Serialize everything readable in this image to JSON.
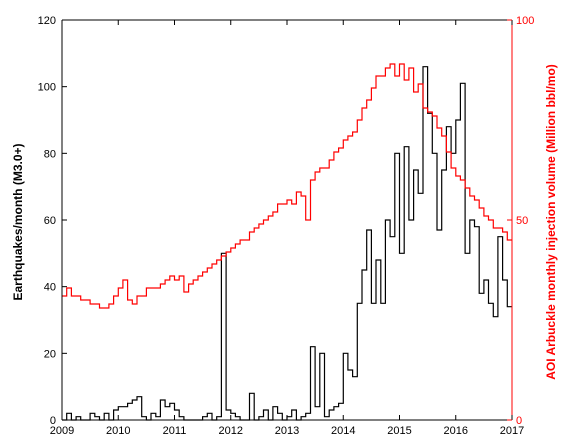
{
  "chart_data": {
    "type": "line",
    "xlabel": "",
    "ylabel": "Earthquakes/month (M3.0+)",
    "y2label": "AOI Arbuckle monthly injection volume (Million bbl/mo)",
    "xlim": [
      2009,
      2017
    ],
    "ylim": [
      0,
      120
    ],
    "y2lim": [
      0,
      100
    ],
    "x_ticks": [
      "2009",
      "2010",
      "2011",
      "2012",
      "2013",
      "2014",
      "2015",
      "2016",
      "2017"
    ],
    "y_ticks": [
      "0",
      "20",
      "40",
      "60",
      "80",
      "100",
      "120"
    ],
    "y2_ticks": [
      "0",
      "50",
      "100"
    ],
    "colors": {
      "earthquakes": "#000000",
      "injection": "#ff0000",
      "axis_right": "#ff0000",
      "axis_left": "#000000"
    },
    "series": [
      {
        "axis": "left",
        "style": "step",
        "x": [
          2009.0,
          2009.083,
          2009.167,
          2009.25,
          2009.333,
          2009.417,
          2009.5,
          2009.583,
          2009.667,
          2009.75,
          2009.833,
          2009.917,
          2010.0,
          2010.083,
          2010.167,
          2010.25,
          2010.333,
          2010.417,
          2010.5,
          2010.583,
          2010.667,
          2010.75,
          2010.833,
          2010.917,
          2011.0,
          2011.083,
          2011.167,
          2011.25,
          2011.333,
          2011.417,
          2011.5,
          2011.583,
          2011.667,
          2011.75,
          2011.833,
          2011.917,
          2012.0,
          2012.083,
          2012.167,
          2012.25,
          2012.333,
          2012.417,
          2012.5,
          2012.583,
          2012.667,
          2012.75,
          2012.833,
          2012.917,
          2013.0,
          2013.083,
          2013.167,
          2013.25,
          2013.333,
          2013.417,
          2013.5,
          2013.583,
          2013.667,
          2013.75,
          2013.833,
          2013.917,
          2014.0,
          2014.083,
          2014.167,
          2014.25,
          2014.333,
          2014.417,
          2014.5,
          2014.583,
          2014.667,
          2014.75,
          2014.833,
          2014.917,
          2015.0,
          2015.083,
          2015.167,
          2015.25,
          2015.333,
          2015.417,
          2015.5,
          2015.583,
          2015.667,
          2015.75,
          2015.833,
          2015.917,
          2016.0,
          2016.083,
          2016.167,
          2016.25,
          2016.333,
          2016.417,
          2016.5,
          2016.583,
          2016.667,
          2016.75,
          2016.833,
          2016.917
        ],
        "values": [
          0,
          2,
          0,
          1,
          0,
          0,
          2,
          1,
          0,
          2,
          0,
          3,
          4,
          4,
          5,
          6,
          7,
          1,
          0,
          2,
          1,
          6,
          4,
          5,
          3,
          1,
          0,
          0,
          0,
          0,
          1,
          2,
          0,
          1,
          50,
          3,
          2,
          1,
          0,
          0,
          8,
          0,
          1,
          3,
          0,
          4,
          2,
          0,
          1,
          3,
          0,
          1,
          2,
          22,
          4,
          20,
          1,
          3,
          4,
          5,
          20,
          15,
          13,
          35,
          45,
          57,
          35,
          48,
          35,
          60,
          55,
          80,
          50,
          82,
          60,
          75,
          68,
          106,
          92,
          80,
          57,
          75,
          88,
          80,
          90,
          101,
          50,
          60,
          58,
          38,
          42,
          35,
          31,
          55,
          42,
          34
        ]
      },
      {
        "axis": "right",
        "style": "step",
        "x": [
          2009.0,
          2009.083,
          2009.167,
          2009.25,
          2009.333,
          2009.417,
          2009.5,
          2009.583,
          2009.667,
          2009.75,
          2009.833,
          2009.917,
          2010.0,
          2010.083,
          2010.167,
          2010.25,
          2010.333,
          2010.417,
          2010.5,
          2010.583,
          2010.667,
          2010.75,
          2010.833,
          2010.917,
          2011.0,
          2011.083,
          2011.167,
          2011.25,
          2011.333,
          2011.417,
          2011.5,
          2011.583,
          2011.667,
          2011.75,
          2011.833,
          2011.917,
          2012.0,
          2012.083,
          2012.167,
          2012.25,
          2012.333,
          2012.417,
          2012.5,
          2012.583,
          2012.667,
          2012.75,
          2012.833,
          2012.917,
          2013.0,
          2013.083,
          2013.167,
          2013.25,
          2013.333,
          2013.417,
          2013.5,
          2013.583,
          2013.667,
          2013.75,
          2013.833,
          2013.917,
          2014.0,
          2014.083,
          2014.167,
          2014.25,
          2014.333,
          2014.417,
          2014.5,
          2014.583,
          2014.667,
          2014.75,
          2014.833,
          2014.917,
          2015.0,
          2015.083,
          2015.167,
          2015.25,
          2015.333,
          2015.417,
          2015.5,
          2015.583,
          2015.667,
          2015.75,
          2015.833,
          2015.917,
          2016.0,
          2016.083,
          2016.167,
          2016.25,
          2016.333,
          2016.417,
          2016.5,
          2016.583,
          2016.667,
          2016.75,
          2016.833,
          2016.917
        ],
        "values": [
          31,
          33,
          31,
          31,
          30,
          30,
          29,
          29,
          28,
          28,
          29,
          31,
          33,
          35,
          30,
          29,
          31,
          31,
          33,
          33,
          33,
          34,
          35,
          36,
          35,
          36,
          32,
          34,
          35,
          36,
          37,
          38,
          39,
          40,
          41,
          42,
          43,
          44,
          45,
          45,
          47,
          48,
          49,
          50,
          51,
          52,
          54,
          54,
          55,
          54,
          57,
          56,
          50,
          60,
          62,
          63,
          63,
          65,
          67,
          68,
          70,
          71,
          72,
          75,
          78,
          80,
          83,
          86,
          86,
          88,
          89,
          86,
          89,
          85,
          88,
          82,
          84,
          78,
          77,
          76,
          73,
          71,
          67,
          63,
          61,
          60,
          58,
          56,
          55,
          53,
          51,
          50,
          48,
          48,
          47,
          45
        ]
      }
    ]
  }
}
